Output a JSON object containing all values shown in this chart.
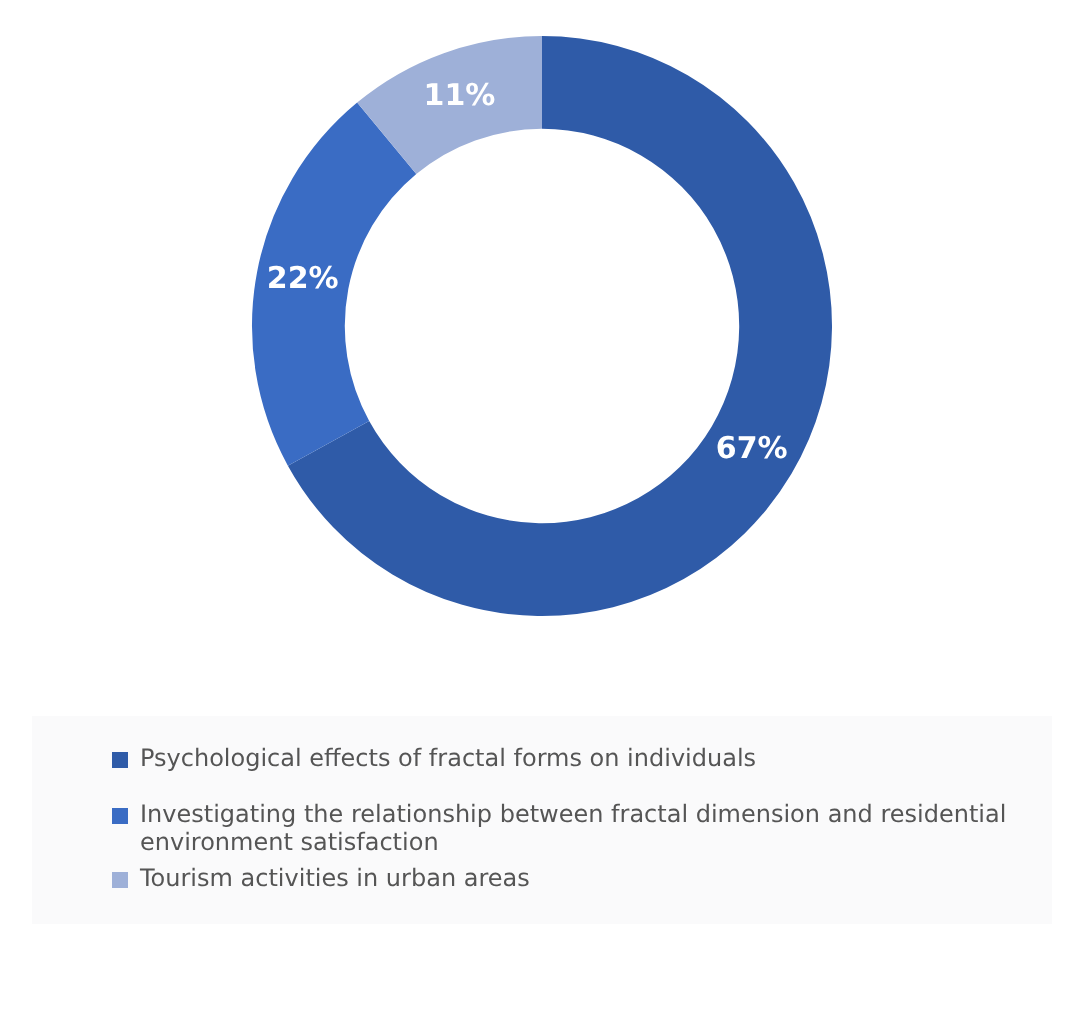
{
  "chart_data": {
    "type": "donut",
    "categories": [
      "Psychological effects of fractal forms on individuals",
      "Investigating the relationship between fractal dimension and residential environment satisfaction",
      "Tourism activities in urban areas"
    ],
    "values": [
      67,
      22,
      11
    ],
    "value_labels": [
      "67%",
      "22%",
      "11%"
    ],
    "colors": [
      "#2f5ba8",
      "#3a6cc4",
      "#9eb0d8"
    ],
    "legend": "bottom"
  }
}
